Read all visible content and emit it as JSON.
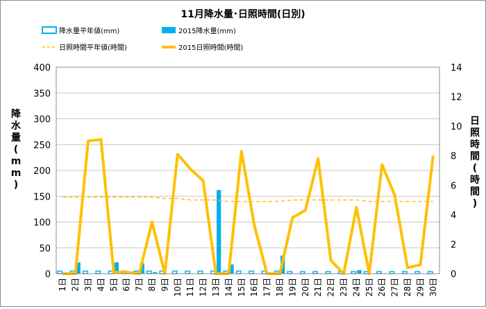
{
  "chart_data": {
    "type": "bar+line",
    "title": "11月降水量･日照時間(日別)",
    "categories": [
      "1日",
      "2日",
      "3日",
      "4日",
      "5日",
      "6日",
      "7日",
      "8日",
      "9日",
      "10日",
      "11日",
      "12日",
      "13日",
      "14日",
      "15日",
      "16日",
      "17日",
      "18日",
      "19日",
      "20日",
      "21日",
      "22日",
      "23日",
      "24日",
      "25日",
      "26日",
      "27日",
      "28日",
      "29日",
      "30日"
    ],
    "ylabel_left": "降水量(mm)",
    "ylabel_right": "日照時間(時間)",
    "ylim_left": [
      0,
      400
    ],
    "ylim_right": [
      0,
      14
    ],
    "yticks_left": [
      "0",
      "50",
      "100",
      "150",
      "200",
      "250",
      "300",
      "350",
      "400"
    ],
    "yticks_right": [
      "0",
      "2",
      "4",
      "6",
      "8",
      "10",
      "12",
      "14"
    ],
    "legend_position": "top",
    "series": [
      {
        "name": "降水量平年値(mm)",
        "type": "bar",
        "axis": "left",
        "style": "outline",
        "values": [
          5,
          5,
          5,
          5,
          5,
          5,
          5,
          5,
          5,
          5,
          5,
          5,
          5,
          5,
          5,
          5,
          5,
          5,
          4,
          4,
          4,
          4,
          4,
          4,
          4,
          4,
          4,
          4,
          4,
          4
        ]
      },
      {
        "name": "2015降水量(mm)",
        "type": "bar",
        "axis": "left",
        "style": "filled",
        "values": [
          0,
          22,
          0,
          0,
          22,
          0,
          20,
          3,
          0,
          0,
          0,
          0,
          162,
          18,
          0,
          0,
          0,
          35,
          0,
          0,
          0,
          0,
          0,
          7,
          0,
          0,
          0,
          0,
          0,
          0
        ]
      },
      {
        "name": "日照時間平年値(時間)",
        "type": "line",
        "axis": "right",
        "style": "dashed",
        "values": [
          5.2,
          5.2,
          5.2,
          5.2,
          5.2,
          5.2,
          5.2,
          5.2,
          5.1,
          5.1,
          5.0,
          5.0,
          5.0,
          4.9,
          4.9,
          4.9,
          4.9,
          4.9,
          5.0,
          5.0,
          5.0,
          5.0,
          5.0,
          5.0,
          4.9,
          4.9,
          4.9,
          4.9,
          4.9,
          4.9
        ]
      },
      {
        "name": "2015日照時間(時間)",
        "type": "line",
        "axis": "right",
        "style": "solid",
        "values": [
          0,
          0,
          9.0,
          9.1,
          0.1,
          0.1,
          0,
          3.5,
          0,
          8.1,
          7.1,
          6.3,
          0,
          0,
          8.3,
          3.3,
          0,
          0,
          3.8,
          4.3,
          7.8,
          0.9,
          0,
          4.5,
          0,
          7.4,
          5.3,
          0.4,
          0.6,
          8.0
        ]
      }
    ]
  },
  "colors": {
    "rain_normal": "#00b0f0",
    "rain_2015": "#00b0f0",
    "sun_normal": "#ffc000",
    "sun_2015": "#ffc000",
    "grid": "#c8c8c8",
    "text": "#000000"
  }
}
